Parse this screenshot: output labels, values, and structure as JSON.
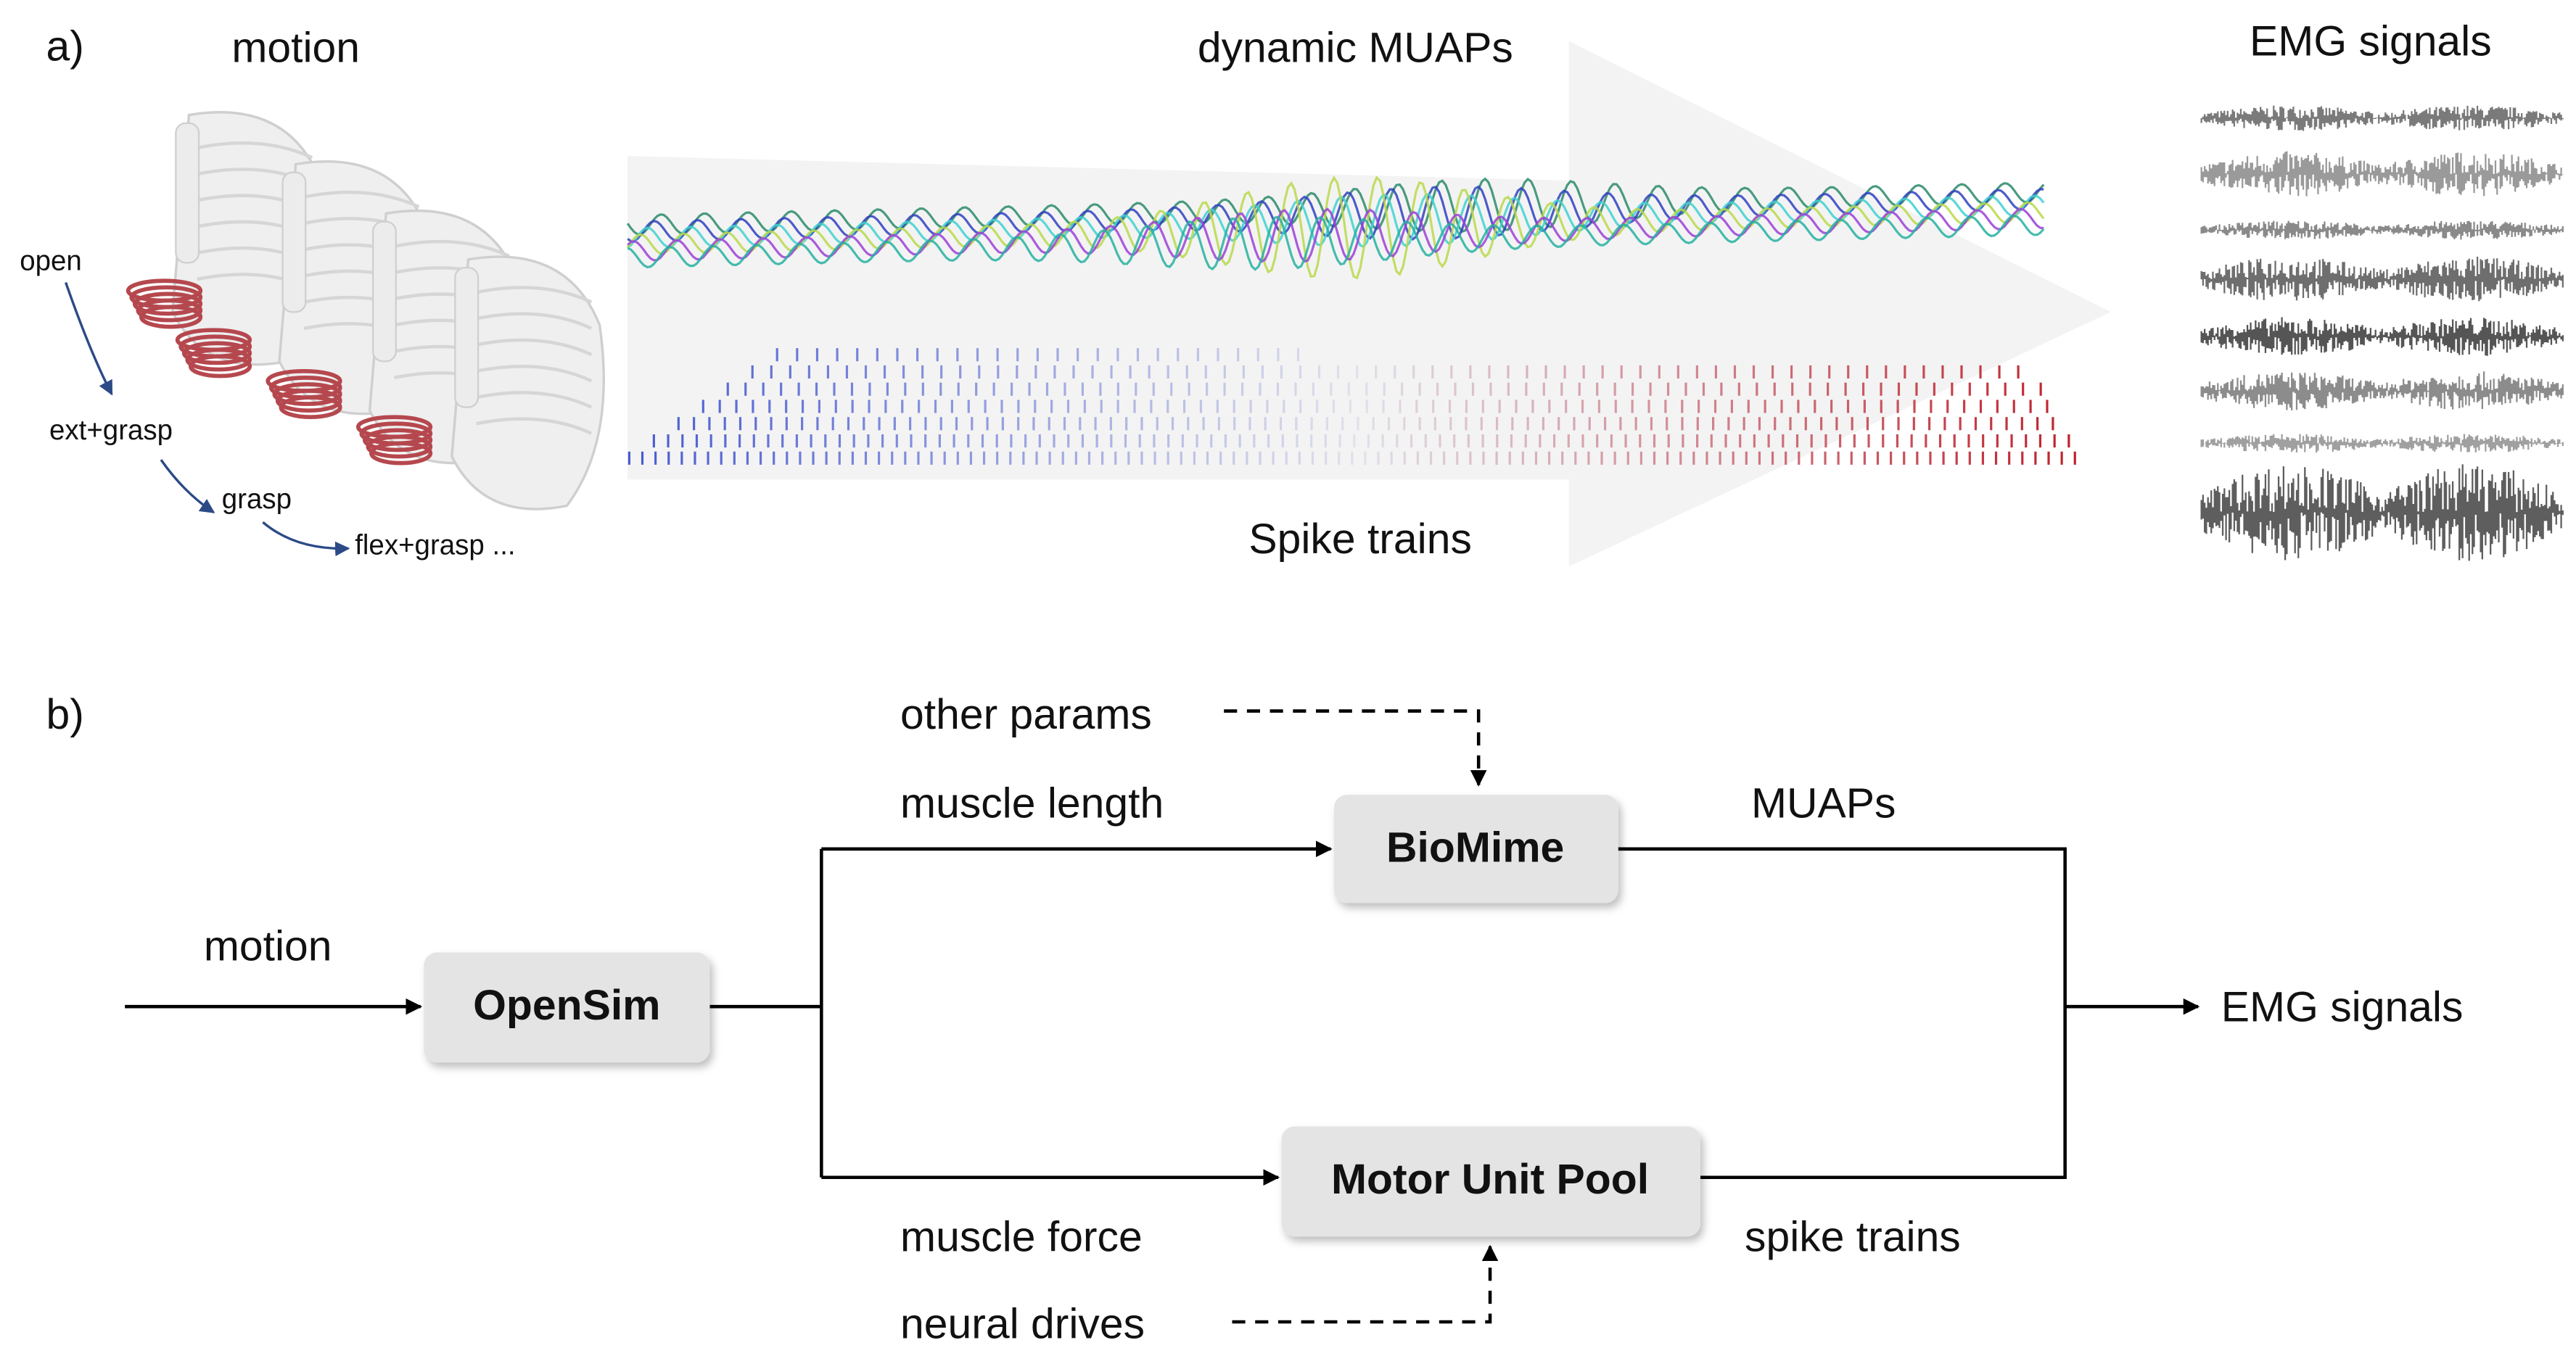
{
  "panel_a": {
    "label": "a)",
    "motion_title": "motion",
    "motion_labels": [
      "open",
      "ext+grasp",
      "grasp",
      "flex+grasp ..."
    ],
    "muaps_title": "dynamic MUAPs",
    "spikes_title": "Spike trains",
    "emg_title": "EMG signals"
  },
  "panel_b": {
    "label": "b)",
    "nodes": [
      {
        "label": "OpenSim"
      },
      {
        "label": "BioMime"
      },
      {
        "label": "Motor Unit Pool"
      }
    ],
    "inputs": {
      "motion": "motion",
      "other_params": "other params",
      "neural_drives": "neural drives"
    },
    "edges": {
      "muscle_length": "muscle length",
      "muscle_force": "muscle force",
      "muaps": "MUAPs",
      "spike_trains": "spike trains"
    },
    "output": "EMG signals"
  }
}
